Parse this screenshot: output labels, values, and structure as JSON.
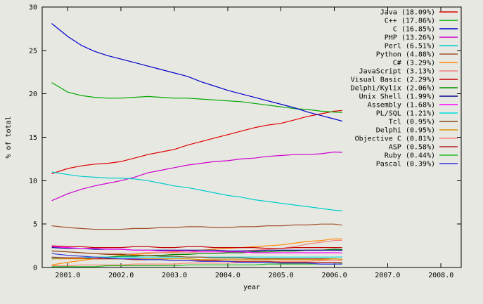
{
  "page": {
    "background": "#e8e8e2",
    "border_color": "#000000",
    "text_color": "#000000"
  },
  "chart_data": {
    "type": "line",
    "title": "",
    "xlabel": "year",
    "ylabel": "% of total",
    "xlim": [
      2000.52,
      2008.38
    ],
    "ylim": [
      0,
      30
    ],
    "xticks": [
      2001.0,
      2002.0,
      2003.0,
      2004.0,
      2005.0,
      2006.0,
      2007.0,
      2008.0
    ],
    "xtick_labels": [
      "2001.0",
      "2002.0",
      "2003.0",
      "2004.0",
      "2005.0",
      "2006.0",
      "2007.0",
      "2008.0"
    ],
    "yticks": [
      0,
      5,
      10,
      15,
      20,
      25,
      30
    ],
    "ytick_labels": [
      "0",
      "5",
      "10",
      "15",
      "20",
      "25",
      "30"
    ],
    "grid": false,
    "legend_position": "top-right-inside",
    "x": [
      2000.7,
      2001.0,
      2001.25,
      2001.5,
      2001.75,
      2002.0,
      2002.25,
      2002.5,
      2002.75,
      2003.0,
      2003.25,
      2003.5,
      2003.75,
      2004.0,
      2004.25,
      2004.5,
      2004.75,
      2005.0,
      2005.25,
      2005.5,
      2005.75,
      2006.0,
      2006.15
    ],
    "series": [
      {
        "name": "Java",
        "label": "Java (18.09%)",
        "color": "#dd0000",
        "values": [
          10.8,
          11.4,
          11.7,
          11.9,
          12.0,
          12.2,
          12.6,
          13.0,
          13.3,
          13.6,
          14.1,
          14.5,
          14.9,
          15.3,
          15.7,
          16.1,
          16.4,
          16.6,
          17.0,
          17.4,
          17.7,
          18.0,
          18.09
        ]
      },
      {
        "name": "C++",
        "label": "C++ (17.86%)",
        "color": "#00a800",
        "values": [
          21.3,
          20.2,
          19.8,
          19.6,
          19.5,
          19.5,
          19.6,
          19.7,
          19.6,
          19.5,
          19.5,
          19.4,
          19.3,
          19.2,
          19.1,
          18.9,
          18.7,
          18.5,
          18.3,
          18.2,
          18.0,
          17.9,
          17.86
        ]
      },
      {
        "name": "C",
        "label": "C (16.85%)",
        "color": "#0000cd",
        "values": [
          28.1,
          26.6,
          25.6,
          24.9,
          24.4,
          24.0,
          23.6,
          23.2,
          22.8,
          22.4,
          22.0,
          21.4,
          20.9,
          20.4,
          20.0,
          19.6,
          19.2,
          18.8,
          18.4,
          17.9,
          17.5,
          17.1,
          16.85
        ]
      },
      {
        "name": "PHP",
        "label": "PHP (13.26%)",
        "color": "#cc00cc",
        "values": [
          7.7,
          8.5,
          9.0,
          9.4,
          9.7,
          10.0,
          10.4,
          10.9,
          11.2,
          11.5,
          11.8,
          12.0,
          12.2,
          12.3,
          12.5,
          12.6,
          12.8,
          12.9,
          13.0,
          13.0,
          13.1,
          13.3,
          13.26
        ]
      },
      {
        "name": "Perl",
        "label": "Perl (6.51%)",
        "color": "#00cccc",
        "values": [
          11.0,
          10.7,
          10.5,
          10.4,
          10.3,
          10.3,
          10.2,
          10.0,
          9.7,
          9.4,
          9.2,
          8.9,
          8.6,
          8.3,
          8.1,
          7.8,
          7.6,
          7.4,
          7.2,
          7.0,
          6.8,
          6.6,
          6.51
        ]
      },
      {
        "name": "Python",
        "label": "Python (4.88%)",
        "color": "#a0522d",
        "values": [
          4.8,
          4.6,
          4.5,
          4.4,
          4.4,
          4.4,
          4.5,
          4.5,
          4.6,
          4.6,
          4.7,
          4.7,
          4.6,
          4.6,
          4.7,
          4.7,
          4.8,
          4.8,
          4.9,
          4.9,
          5.0,
          5.0,
          4.88
        ]
      },
      {
        "name": "C#",
        "label": "C# (3.29%)",
        "color": "#ff8800",
        "values": [
          0.3,
          0.6,
          0.8,
          1.0,
          1.2,
          1.4,
          1.5,
          1.6,
          1.7,
          1.8,
          1.9,
          2.0,
          2.1,
          2.2,
          2.3,
          2.4,
          2.5,
          2.6,
          2.8,
          3.0,
          3.1,
          3.3,
          3.29
        ]
      },
      {
        "name": "JavaScript",
        "label": "JavaScript (3.13%)",
        "color": "#f08080",
        "values": [
          1.9,
          1.8,
          1.7,
          1.6,
          1.6,
          1.6,
          1.6,
          1.7,
          1.7,
          1.7,
          1.7,
          1.8,
          1.8,
          1.8,
          1.9,
          2.0,
          2.1,
          2.2,
          2.4,
          2.7,
          2.9,
          3.1,
          3.13
        ]
      },
      {
        "name": "Visual Basic",
        "label": "Visual Basic (2.29%)",
        "color": "#c00000",
        "values": [
          2.5,
          2.4,
          2.4,
          2.3,
          2.3,
          2.3,
          2.4,
          2.4,
          2.3,
          2.3,
          2.4,
          2.4,
          2.3,
          2.3,
          2.3,
          2.3,
          2.2,
          2.2,
          2.3,
          2.3,
          2.3,
          2.3,
          2.29
        ]
      },
      {
        "name": "Delphi/Kylix",
        "label": "Delphi/Kylix (2.06%)",
        "color": "#008800",
        "values": [
          1.0,
          1.1,
          1.1,
          1.2,
          1.2,
          1.3,
          1.3,
          1.4,
          1.4,
          1.5,
          1.5,
          1.6,
          1.6,
          1.7,
          1.7,
          1.8,
          1.8,
          1.9,
          1.9,
          2.0,
          2.0,
          2.1,
          2.06
        ]
      },
      {
        "name": "Unix Shell",
        "label": "Unix Shell (1.99%)",
        "color": "#000090",
        "values": [
          2.3,
          2.2,
          2.2,
          2.1,
          2.1,
          2.1,
          2.0,
          2.0,
          2.0,
          2.0,
          2.0,
          2.0,
          2.0,
          1.9,
          1.9,
          1.9,
          2.0,
          2.0,
          2.0,
          2.0,
          2.0,
          2.0,
          1.99
        ]
      },
      {
        "name": "Assembly",
        "label": "Assembly (1.68%)",
        "color": "#ff00ff",
        "values": [
          2.4,
          2.3,
          2.2,
          2.2,
          2.1,
          2.1,
          2.0,
          2.0,
          1.9,
          1.9,
          1.9,
          1.8,
          1.8,
          1.8,
          1.8,
          1.7,
          1.7,
          1.7,
          1.7,
          1.7,
          1.7,
          1.7,
          1.68
        ]
      },
      {
        "name": "PL/SQL",
        "label": "PL/SQL (1.21%)",
        "color": "#00dddd",
        "values": [
          1.1,
          1.1,
          1.1,
          1.2,
          1.2,
          1.2,
          1.2,
          1.2,
          1.2,
          1.2,
          1.2,
          1.2,
          1.2,
          1.2,
          1.2,
          1.2,
          1.2,
          1.2,
          1.2,
          1.2,
          1.2,
          1.2,
          1.21
        ]
      },
      {
        "name": "Tcl",
        "label": "Tcl (0.95%)",
        "color": "#8b4513",
        "values": [
          1.9,
          1.8,
          1.7,
          1.6,
          1.5,
          1.5,
          1.4,
          1.4,
          1.3,
          1.3,
          1.2,
          1.2,
          1.1,
          1.1,
          1.1,
          1.0,
          1.0,
          1.0,
          1.0,
          1.0,
          1.0,
          1.0,
          0.95
        ]
      },
      {
        "name": "Delphi",
        "label": "Delphi (0.95%)",
        "color": "#dd9000",
        "values": [
          1.0,
          1.0,
          1.0,
          1.0,
          1.0,
          1.0,
          1.0,
          1.0,
          1.0,
          1.0,
          1.0,
          0.9,
          0.9,
          0.9,
          0.9,
          0.9,
          0.9,
          0.9,
          0.9,
          0.9,
          0.9,
          1.0,
          0.95
        ]
      },
      {
        "name": "Objective C",
        "label": "Objective C (0.81%)",
        "color": "#fa8072",
        "values": [
          0.2,
          0.2,
          0.3,
          0.3,
          0.3,
          0.3,
          0.4,
          0.4,
          0.4,
          0.4,
          0.5,
          0.5,
          0.5,
          0.5,
          0.6,
          0.6,
          0.6,
          0.7,
          0.7,
          0.7,
          0.8,
          0.8,
          0.81
        ]
      },
      {
        "name": "ASP",
        "label": "ASP (0.58%)",
        "color": "#b22222",
        "values": [
          1.2,
          1.1,
          1.1,
          1.0,
          1.0,
          1.0,
          0.9,
          0.9,
          0.9,
          0.8,
          0.8,
          0.8,
          0.8,
          0.7,
          0.7,
          0.7,
          0.7,
          0.6,
          0.6,
          0.6,
          0.6,
          0.6,
          0.58
        ]
      },
      {
        "name": "Ruby",
        "label": "Ruby (0.44%)",
        "color": "#22bb22",
        "values": [
          0.1,
          0.1,
          0.1,
          0.1,
          0.2,
          0.2,
          0.2,
          0.2,
          0.2,
          0.2,
          0.3,
          0.3,
          0.3,
          0.3,
          0.3,
          0.3,
          0.4,
          0.4,
          0.4,
          0.4,
          0.4,
          0.4,
          0.44
        ]
      },
      {
        "name": "Pascal",
        "label": "Pascal (0.39%)",
        "color": "#3333dd",
        "values": [
          1.6,
          1.4,
          1.3,
          1.2,
          1.1,
          1.0,
          1.0,
          0.9,
          0.9,
          0.8,
          0.8,
          0.7,
          0.7,
          0.7,
          0.6,
          0.6,
          0.6,
          0.5,
          0.5,
          0.5,
          0.4,
          0.4,
          0.39
        ]
      }
    ]
  }
}
